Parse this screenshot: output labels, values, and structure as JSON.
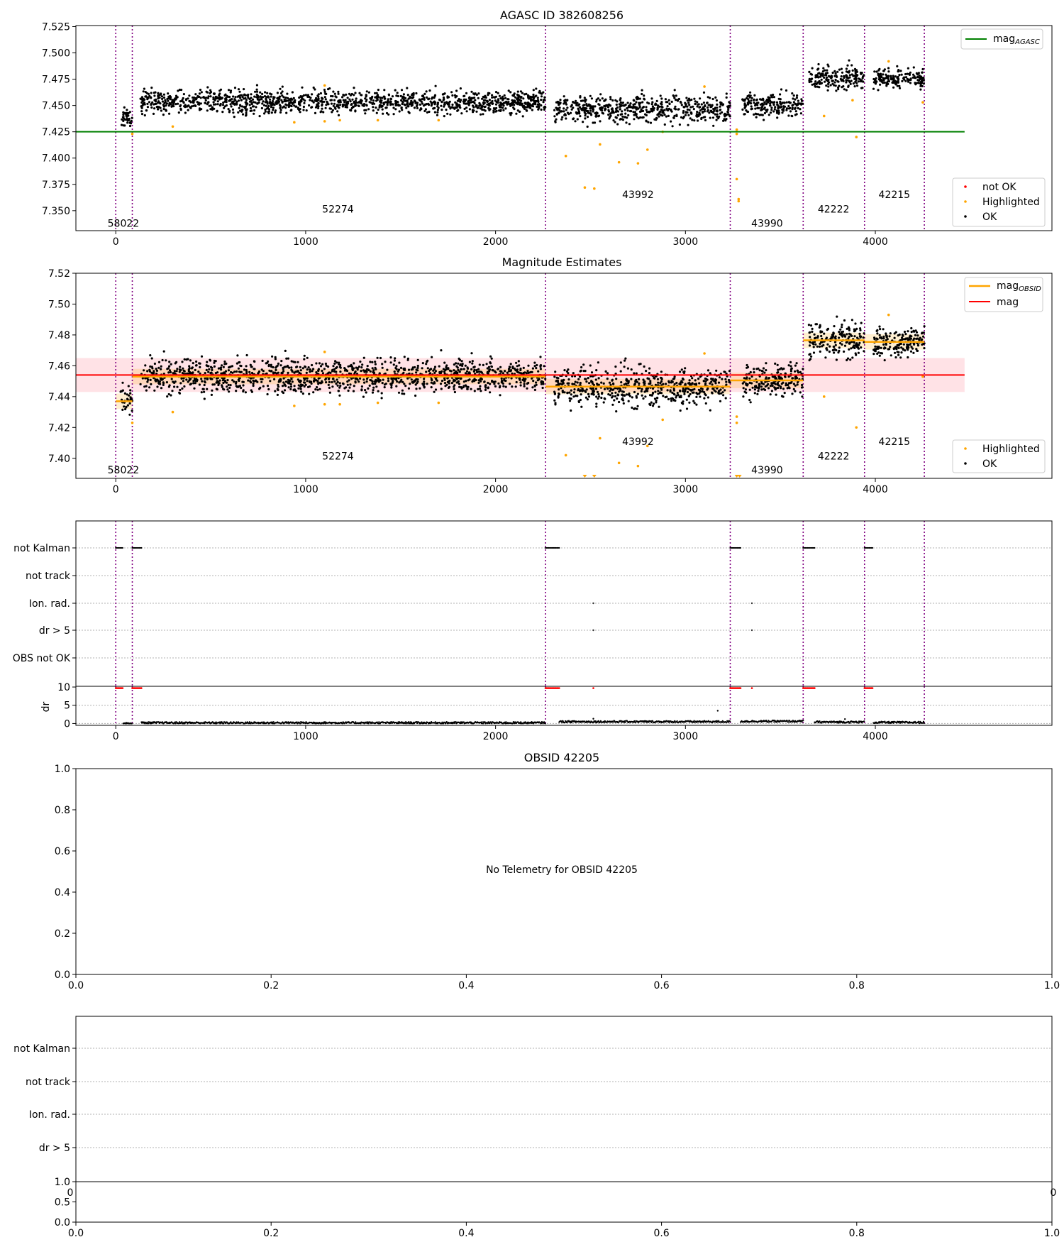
{
  "chart_data": [
    {
      "panel": "agasc_mag",
      "type": "scatter",
      "title": "AGASC ID 382608256",
      "xlabel": "",
      "ylabel": "",
      "xlim": [
        -210,
        4930
      ],
      "ylim": [
        7.331,
        7.526
      ],
      "x_ticks": [
        0,
        1000,
        2000,
        3000,
        4000
      ],
      "x_tick_labels": [
        "0",
        "1000",
        "2000",
        "3000",
        "4000"
      ],
      "y_ticks": [
        7.35,
        7.375,
        7.4,
        7.425,
        7.45,
        7.475,
        7.5,
        7.525
      ],
      "y_tick_labels": [
        "7.350",
        "7.375",
        "7.400",
        "7.425",
        "7.450",
        "7.475",
        "7.500",
        "7.525"
      ],
      "obsid_boundaries": [
        0,
        87,
        2263,
        3236,
        3620,
        3943,
        4258
      ],
      "obsid_labels": [
        {
          "label": "58022",
          "x": 40,
          "y": 7.338
        },
        {
          "label": "52274",
          "x": 1170,
          "y": 7.3515
        },
        {
          "label": "43992",
          "x": 2750,
          "y": 7.3655
        },
        {
          "label": "43990",
          "x": 3430,
          "y": 7.338
        },
        {
          "label": "42222",
          "x": 3780,
          "y": 7.3515
        },
        {
          "label": "42215",
          "x": 4100,
          "y": 7.3655
        }
      ],
      "segments": [
        {
          "x0": 25,
          "x1": 87,
          "mean": 7.438,
          "spread": 0.0045
        },
        {
          "x0": 130,
          "x1": 2263,
          "mean": 7.4535,
          "spread": 0.0055
        },
        {
          "x0": 2310,
          "x1": 3236,
          "mean": 7.4465,
          "spread": 0.0065
        },
        {
          "x0": 3300,
          "x1": 3620,
          "mean": 7.4505,
          "spread": 0.0055
        },
        {
          "x0": 3650,
          "x1": 3943,
          "mean": 7.4765,
          "spread": 0.0058
        },
        {
          "x0": 3990,
          "x1": 4258,
          "mean": 7.4755,
          "spread": 0.0048
        }
      ],
      "highlighted": [
        [
          87,
          7.423
        ],
        [
          300,
          7.43
        ],
        [
          940,
          7.434
        ],
        [
          1100,
          7.435
        ],
        [
          1180,
          7.436
        ],
        [
          1380,
          7.436
        ],
        [
          1700,
          7.436
        ],
        [
          1100,
          7.469
        ],
        [
          3100,
          7.468
        ],
        [
          3270,
          7.427
        ],
        [
          3270,
          7.423
        ],
        [
          2370,
          7.402
        ],
        [
          2550,
          7.413
        ],
        [
          2800,
          7.408
        ],
        [
          2650,
          7.396
        ],
        [
          2750,
          7.395
        ],
        [
          2470,
          7.372
        ],
        [
          2520,
          7.371
        ],
        [
          2880,
          7.425
        ],
        [
          3270,
          7.38
        ],
        [
          3280,
          7.361
        ],
        [
          3280,
          7.359
        ],
        [
          3730,
          7.44
        ],
        [
          3880,
          7.455
        ],
        [
          3900,
          7.42
        ],
        [
          4070,
          7.492
        ],
        [
          4250,
          7.453
        ]
      ],
      "lines": [
        {
          "name": "mag_AGASC",
          "y": 7.425,
          "x0": -210,
          "x1": 4470,
          "color": "#008000"
        }
      ],
      "legends": [
        {
          "position": "top-right",
          "entries": [
            {
              "label": "mag",
              "sub": "AGASC",
              "kind": "line",
              "color": "#008000"
            }
          ]
        },
        {
          "position": "bottom-right",
          "entries": [
            {
              "label": "not OK",
              "kind": "dot",
              "color": "#ff0000"
            },
            {
              "label": "Highlighted",
              "kind": "dot",
              "color": "#ffa500"
            },
            {
              "label": "OK",
              "kind": "dot",
              "color": "#000000"
            }
          ]
        }
      ]
    },
    {
      "panel": "magnitude_estimates",
      "type": "scatter",
      "title": "Magnitude Estimates",
      "xlabel": "",
      "ylabel": "",
      "xlim": [
        -210,
        4930
      ],
      "ylim": [
        7.387,
        7.52
      ],
      "x_ticks": [
        0,
        1000,
        2000,
        3000,
        4000
      ],
      "x_tick_labels": [
        "0",
        "1000",
        "2000",
        "3000",
        "4000"
      ],
      "y_ticks": [
        7.4,
        7.42,
        7.44,
        7.46,
        7.48,
        7.5,
        7.52
      ],
      "y_tick_labels": [
        "7.40",
        "7.42",
        "7.44",
        "7.46",
        "7.48",
        "7.50",
        "7.52"
      ],
      "obsid_boundaries": [
        0,
        87,
        2263,
        3236,
        3620,
        3943,
        4258
      ],
      "obsid_labels": [
        {
          "label": "58022",
          "x": 40,
          "y": 7.3925
        },
        {
          "label": "52274",
          "x": 1170,
          "y": 7.4015
        },
        {
          "label": "43992",
          "x": 2750,
          "y": 7.411
        },
        {
          "label": "43990",
          "x": 3430,
          "y": 7.3925
        },
        {
          "label": "42222",
          "x": 3780,
          "y": 7.4015
        },
        {
          "label": "42215",
          "x": 4100,
          "y": 7.411
        }
      ],
      "global_mag": {
        "name": "mag",
        "value": 7.454,
        "band": [
          7.443,
          7.465
        ],
        "x0": -210,
        "x1": 4470,
        "color": "#ff0000"
      },
      "obsid_mags": [
        {
          "x0": 0,
          "x1": 87,
          "value": 7.437
        },
        {
          "x0": 87,
          "x1": 2263,
          "value": 7.453
        },
        {
          "x0": 2263,
          "x1": 3236,
          "value": 7.4465
        },
        {
          "x0": 3236,
          "x1": 3620,
          "value": 7.4505
        },
        {
          "x0": 3620,
          "x1": 3943,
          "value": 7.4765
        },
        {
          "x0": 3943,
          "x1": 4258,
          "value": 7.4755
        }
      ],
      "highlighted": [
        [
          87,
          7.423
        ],
        [
          300,
          7.43
        ],
        [
          940,
          7.434
        ],
        [
          1100,
          7.435
        ],
        [
          1180,
          7.435
        ],
        [
          1380,
          7.436
        ],
        [
          1700,
          7.436
        ],
        [
          1100,
          7.469
        ],
        [
          3100,
          7.468
        ],
        [
          3270,
          7.427
        ],
        [
          3270,
          7.423
        ],
        [
          2370,
          7.402
        ],
        [
          2550,
          7.413
        ],
        [
          2800,
          7.408
        ],
        [
          2650,
          7.397
        ],
        [
          2750,
          7.395
        ],
        [
          2880,
          7.425
        ],
        [
          3730,
          7.44
        ],
        [
          3900,
          7.42
        ],
        [
          4070,
          7.493
        ],
        [
          4250,
          7.453
        ]
      ],
      "clipped_low_markers": [
        2470,
        2520,
        3270,
        3285
      ],
      "legends": [
        {
          "position": "top-right",
          "entries": [
            {
              "label": "mag",
              "sub": "OBSID",
              "kind": "line",
              "color": "#ffa500"
            },
            {
              "label": "mag",
              "kind": "line",
              "color": "#ff0000"
            }
          ]
        },
        {
          "position": "bottom-right",
          "entries": [
            {
              "label": "Highlighted",
              "kind": "dot",
              "color": "#ffa500"
            },
            {
              "label": "OK",
              "kind": "dot",
              "color": "#000000"
            }
          ]
        }
      ]
    },
    {
      "panel": "flags",
      "type": "scatter",
      "categories": [
        "not Kalman",
        "not track",
        "Ion. rad.",
        "dr > 5",
        "OBS not OK"
      ],
      "xlim": [
        -210,
        4930
      ],
      "flag_ranges": [
        {
          "category": "not Kalman",
          "x0": 0,
          "x1": 40
        },
        {
          "category": "not Kalman",
          "x0": 87,
          "x1": 135
        },
        {
          "category": "not Kalman",
          "x0": 2263,
          "x1": 2335
        },
        {
          "category": "not Kalman",
          "x0": 3236,
          "x1": 3290
        },
        {
          "category": "not Kalman",
          "x0": 3620,
          "x1": 3680
        },
        {
          "category": "not Kalman",
          "x0": 3943,
          "x1": 3990
        }
      ],
      "flag_points": [
        {
          "category": "Ion. rad.",
          "x": 2515
        },
        {
          "category": "Ion. rad.",
          "x": 3350
        },
        {
          "category": "dr > 5",
          "x": 2515
        },
        {
          "category": "dr > 5",
          "x": 3350
        }
      ]
    },
    {
      "panel": "dr",
      "type": "scatter",
      "ylabel": "dr",
      "xlim": [
        -210,
        4930
      ],
      "ylim": [
        -0.5,
        10.2
      ],
      "y_ticks": [
        0,
        5,
        10
      ],
      "y_tick_labels": [
        "0",
        "5",
        "10"
      ],
      "x_ticks": [
        0,
        1000,
        2000,
        3000,
        4000
      ],
      "x_tick_labels": [
        "0",
        "1000",
        "2000",
        "3000",
        "4000"
      ],
      "clipped_ranges": [
        [
          0,
          40
        ],
        [
          87,
          135
        ],
        [
          2263,
          2335
        ],
        [
          3236,
          3290
        ],
        [
          3620,
          3680
        ],
        [
          3943,
          3990
        ]
      ],
      "clipped_points": [
        2515,
        3350
      ],
      "low_segments": [
        [
          40,
          87,
          0.0
        ],
        [
          135,
          2263,
          0.2
        ],
        [
          2335,
          3236,
          0.5
        ],
        [
          3290,
          3620,
          0.6
        ],
        [
          3680,
          3943,
          0.4
        ],
        [
          3990,
          4258,
          0.3
        ]
      ],
      "spikes": [
        [
          2515,
          1.3
        ],
        [
          3170,
          3.5
        ],
        [
          3840,
          1.2
        ]
      ]
    },
    {
      "panel": "no_telemetry",
      "type": "scatter",
      "title": "OBSID 42205",
      "message": "No Telemetry for OBSID 42205",
      "xlim": [
        0,
        1
      ],
      "ylim": [
        0,
        1
      ],
      "x_ticks": [
        0,
        0.2,
        0.4,
        0.6,
        0.8,
        1.0
      ],
      "x_tick_labels": [
        "0.0",
        "0.2",
        "0.4",
        "0.6",
        "0.8",
        "1.0"
      ],
      "y_ticks": [
        0,
        0.2,
        0.4,
        0.6,
        0.8,
        1.0
      ],
      "y_tick_labels": [
        "0.0",
        "0.2",
        "0.4",
        "0.6",
        "0.8",
        "1.0"
      ]
    },
    {
      "panel": "empty_flags",
      "type": "scatter",
      "categories": [
        "not Kalman",
        "not track",
        "Ion. rad.",
        "dr > 5"
      ],
      "x_edge_labels": [
        "0",
        "0"
      ]
    },
    {
      "panel": "empty_bottom",
      "type": "scatter",
      "xlim": [
        0,
        1
      ],
      "ylim": [
        0,
        1
      ],
      "x_ticks": [
        0,
        0.2,
        0.4,
        0.6,
        0.8,
        1.0
      ],
      "x_tick_labels": [
        "0.0",
        "0.2",
        "0.4",
        "0.6",
        "0.8",
        "1.0"
      ],
      "y_ticks": [
        0,
        0.5,
        1.0
      ],
      "y_tick_labels": [
        "0.0",
        "0.5",
        "1.0"
      ]
    }
  ]
}
